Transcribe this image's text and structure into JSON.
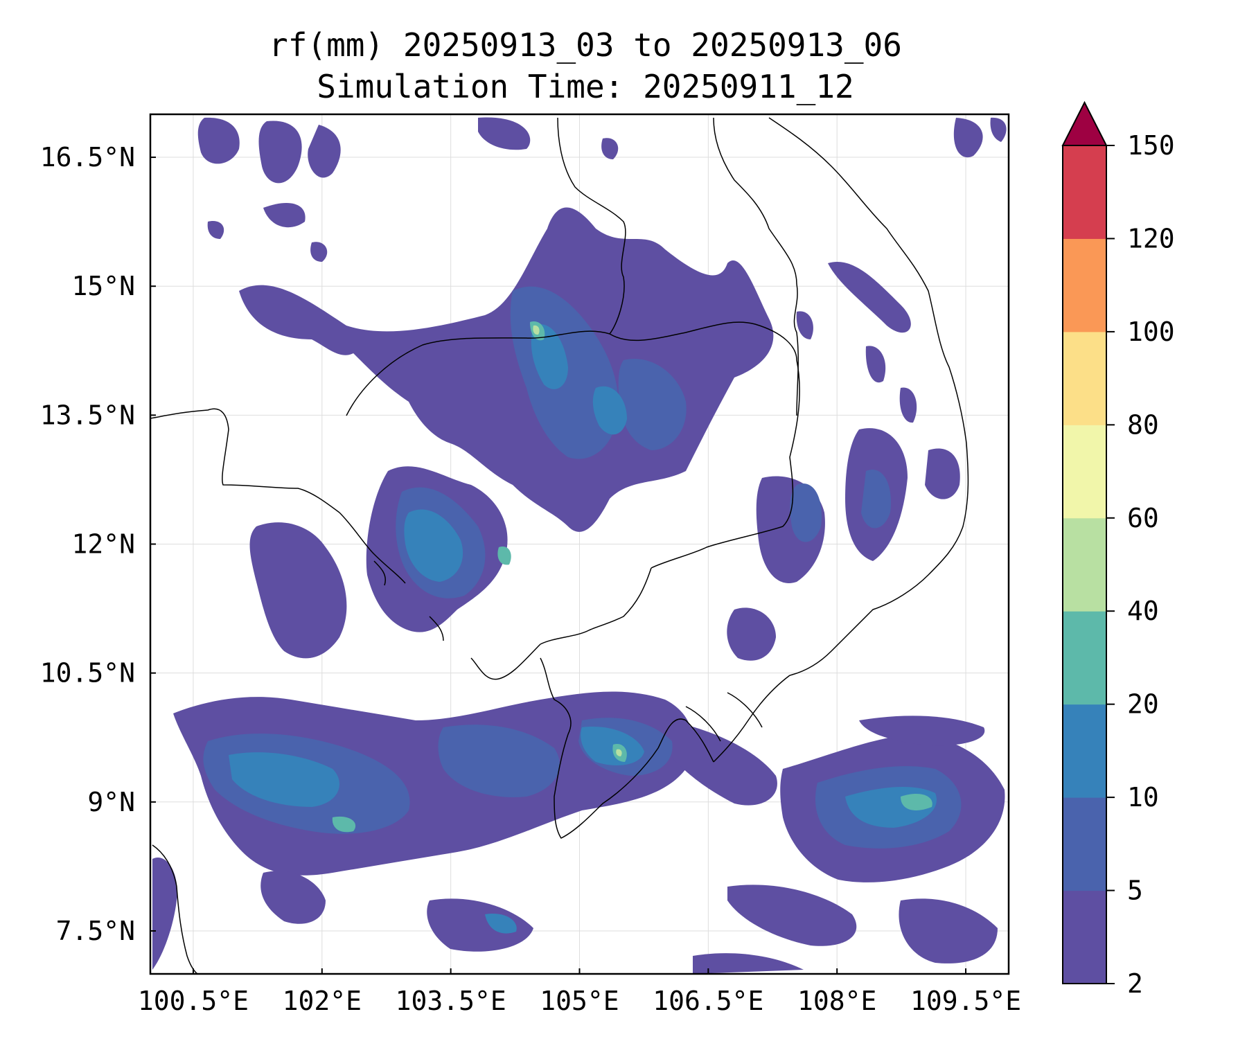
{
  "title": {
    "line1": "rf(mm) 20250913_03 to 20250913_06",
    "line2": "Simulation Time: 20250911_12"
  },
  "map": {
    "lon_range": [
      100.0,
      110.0
    ],
    "lat_range": [
      7.0,
      17.0
    ],
    "gridlines": true,
    "lon_ticks": [
      {
        "value": 100.5,
        "label": "100.5°E"
      },
      {
        "value": 102.0,
        "label": "102°E"
      },
      {
        "value": 103.5,
        "label": "103.5°E"
      },
      {
        "value": 105.0,
        "label": "105°E"
      },
      {
        "value": 106.5,
        "label": "106.5°E"
      },
      {
        "value": 108.0,
        "label": "108°E"
      },
      {
        "value": 109.5,
        "label": "109.5°E"
      }
    ],
    "lat_ticks": [
      {
        "value": 16.5,
        "label": "16.5°N"
      },
      {
        "value": 15.0,
        "label": "15°N"
      },
      {
        "value": 13.5,
        "label": "13.5°N"
      },
      {
        "value": 12.0,
        "label": "12°N"
      },
      {
        "value": 10.5,
        "label": "10.5°N"
      },
      {
        "value": 9.0,
        "label": "9°N"
      },
      {
        "value": 7.5,
        "label": "7.5°N"
      }
    ]
  },
  "colorbar": {
    "levels": [
      "2",
      "5",
      "10",
      "20",
      "40",
      "60",
      "80",
      "100",
      "120",
      "150"
    ],
    "colors": [
      "#5e4fa2",
      "#4a63ad",
      "#3682ba",
      "#5db9aa",
      "#b8e0a2",
      "#f1f6aa",
      "#fcdf88",
      "#fa9856",
      "#d53e4f"
    ],
    "extend_color": "#9e0142",
    "extend": "max"
  }
}
